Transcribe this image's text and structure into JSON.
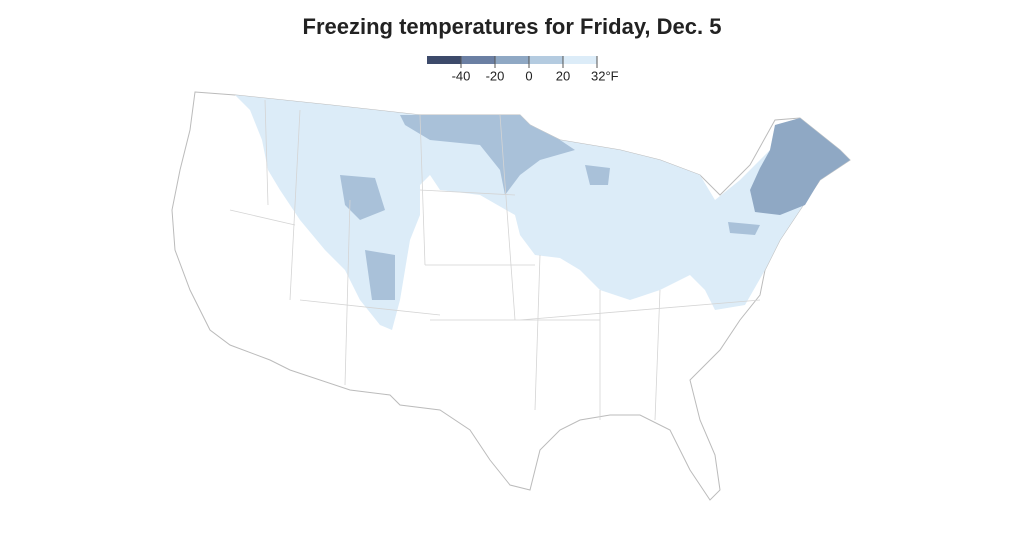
{
  "title": "Freezing temperatures for Friday, Dec. 5",
  "legend": {
    "colors": [
      "#3d4a6b",
      "#6b7fa3",
      "#8fa8c4",
      "#b4cbe0",
      "#dcecf8"
    ],
    "ticks": [
      -40,
      -20,
      0,
      20,
      {
        "value": 32,
        "label": "32°F"
      }
    ]
  }
}
